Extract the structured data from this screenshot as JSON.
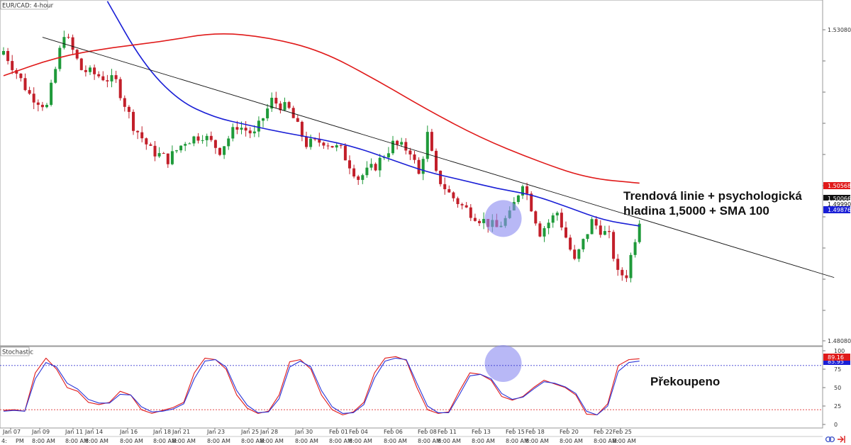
{
  "chart_title": "EUR/CAD: 4-hour",
  "lower_panel_title": "Stochastic",
  "colors": {
    "bull_candle": "#1f9a3a",
    "bear_candle": "#c21f2a",
    "sma_blue": "#1a1fd6",
    "sma_red": "#e01a1a",
    "trendline": "#111111",
    "highlight": "#8c8cf0",
    "stoch_k": "#e01a1a",
    "stoch_d": "#2a35d8"
  },
  "annotations": {
    "main_line1": "Trendová linie + psychologická",
    "main_line2": "hladina 1,5000 + SMA 100",
    "stoch": "Překoupeno"
  },
  "price_axis": {
    "ticks": [
      "1.53080",
      "1.48080"
    ],
    "badges": [
      {
        "text": "1.50568",
        "kind": "red"
      },
      {
        "text": "1.50066",
        "kind": "black"
      },
      {
        "text": "1.49990",
        "kind": "white"
      },
      {
        "text": "1.49876",
        "kind": "blue"
      }
    ]
  },
  "stoch_axis": {
    "ticks": [
      "100",
      "75",
      "50",
      "25",
      "0"
    ],
    "badges": [
      {
        "text": "85.95",
        "kind": "blue"
      },
      {
        "text": "89.16",
        "kind": "red"
      }
    ]
  },
  "x_axis": {
    "dates": [
      "Jan 07",
      "Jan 09",
      "Jan 11",
      "Jan 14",
      "Jan 16",
      "Jan 18",
      "Jan 21",
      "Jan 23",
      "Jan 25",
      "Jan 28",
      "Jan 30",
      "Feb 01",
      "Feb 04",
      "Feb 06",
      "Feb 08",
      "Feb 11",
      "Feb 13",
      "Feb 15",
      "Feb 18",
      "Feb 20",
      "Feb 22",
      "Feb 25"
    ],
    "time_first": "4:",
    "times": [
      "PM",
      "8:00 AM",
      "8:00 AM",
      "8:00 AM",
      "8:00 AM",
      "8:00 AM",
      "8:00 AM",
      "8:00 AM",
      "8:00 AM",
      "8:00 AM",
      "8:00 AM",
      "8:00 AM",
      "8:00 AM",
      "8:00 AM",
      "8:00 AM",
      "8:00 AM",
      "8:00 AM",
      "8:00 AM",
      "8:00 AM",
      "8:00 AM",
      "8:00 AM",
      "8:00 AM"
    ]
  },
  "chart_data": [
    {
      "type": "candlestick",
      "title": "EUR/CAD: 4-hour",
      "ylim": [
        1.4795,
        1.5352
      ],
      "candle_count": 148,
      "close_path": [
        [
          0,
          1.527
        ],
        [
          6,
          1.52
        ],
        [
          10,
          1.518
        ],
        [
          14,
          1.53
        ],
        [
          18,
          1.524
        ],
        [
          22,
          1.523
        ],
        [
          26,
          1.522
        ],
        [
          30,
          1.515
        ],
        [
          34,
          1.511
        ],
        [
          38,
          1.5095
        ],
        [
          42,
          1.5125
        ],
        [
          46,
          1.5135
        ],
        [
          50,
          1.511
        ],
        [
          54,
          1.515
        ],
        [
          58,
          1.5135
        ],
        [
          62,
          1.519
        ],
        [
          66,
          1.5175
        ],
        [
          70,
          1.512
        ],
        [
          74,
          1.5125
        ],
        [
          78,
          1.511
        ],
        [
          82,
          1.5065
        ],
        [
          86,
          1.5085
        ],
        [
          90,
          1.512
        ],
        [
          94,
          1.511
        ],
        [
          96,
          1.507
        ],
        [
          98,
          1.5135
        ],
        [
          100,
          1.507
        ],
        [
          103,
          1.504
        ],
        [
          106,
          1.502
        ],
        [
          110,
          1.5
        ],
        [
          114,
          1.4985
        ],
        [
          117,
          1.5005
        ],
        [
          120,
          1.506
        ],
        [
          124,
          1.4978
        ],
        [
          128,
          1.501
        ],
        [
          132,
          1.493
        ],
        [
          136,
          1.4995
        ],
        [
          140,
          1.497
        ],
        [
          142,
          1.491
        ],
        [
          144,
          1.491
        ],
        [
          147,
          1.4999
        ]
      ],
      "series": [
        {
          "name": "SMA 100",
          "start": 24,
          "values": [
            1.535,
            1.525,
            1.519,
            1.5163,
            1.515,
            1.5138,
            1.5128,
            1.5115,
            1.5095,
            1.5075,
            1.5062,
            1.5048,
            1.5038,
            1.5018,
            1.4997,
            1.4988
          ]
        },
        {
          "name": "SMA 200",
          "start": 0,
          "values": [
            1.523,
            1.526,
            1.5275,
            1.5285,
            1.53,
            1.5292,
            1.527,
            1.5225,
            1.5175,
            1.513,
            1.5095,
            1.5065,
            1.5057
          ]
        }
      ],
      "trendline": {
        "x": [
          9,
          192
        ],
        "y": [
          1.5292,
          1.4905
        ]
      },
      "highlight": {
        "x": 115.5,
        "y": 1.5
      },
      "ytick_labels": [
        "1.53080",
        "1.48080"
      ]
    },
    {
      "type": "line",
      "title": "Stochastic",
      "ylim": [
        0,
        100
      ],
      "levels": [
        80,
        20
      ],
      "series": [
        {
          "name": "%K",
          "values": [
            19,
            20,
            18,
            70,
            90,
            75,
            50,
            45,
            30,
            27,
            30,
            45,
            40,
            20,
            15,
            19,
            23,
            30,
            70,
            90,
            88,
            75,
            40,
            22,
            15,
            18,
            40,
            85,
            88,
            75,
            40,
            20,
            13,
            17,
            30,
            70,
            90,
            92,
            87,
            50,
            20,
            15,
            17,
            45,
            70,
            68,
            60,
            38,
            33,
            38,
            50,
            60,
            55,
            50,
            40,
            14,
            13,
            28,
            80,
            88,
            89.16
          ]
        },
        {
          "name": "%D",
          "values": [
            18,
            19,
            18,
            62,
            84,
            78,
            56,
            48,
            34,
            29,
            29,
            41,
            40,
            24,
            17,
            18,
            21,
            28,
            62,
            86,
            88,
            78,
            46,
            26,
            16,
            17,
            35,
            78,
            86,
            78,
            46,
            24,
            15,
            16,
            27,
            63,
            86,
            90,
            88,
            56,
            25,
            16,
            16,
            40,
            66,
            68,
            62,
            42,
            34,
            37,
            48,
            58,
            56,
            51,
            42,
            18,
            13,
            25,
            72,
            84,
            85.95
          ]
        }
      ],
      "ytick_labels": [
        "100",
        "75",
        "50",
        "25",
        "0"
      ]
    }
  ]
}
